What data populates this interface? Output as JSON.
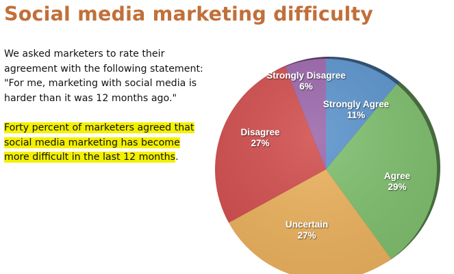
{
  "title": "Social media marketing difficulty",
  "intro": {
    "lines": [
      "We asked marketers to rate their",
      "agreement with the following statement:",
      "\"For me, marketing with social media is",
      "harder than it was 12 months ago.\""
    ]
  },
  "finding": {
    "highlighted_lines": [
      "Forty percent of marketers agreed that",
      "social media marketing has become",
      "more difficult in the last 12 months"
    ],
    "trailing": "."
  },
  "chart_data": {
    "type": "pie",
    "title": "",
    "start_angle": "12 o'clock, clockwise",
    "categories": [
      "Strongly Agree",
      "Agree",
      "Uncertain",
      "Disagree",
      "Strongly Disagree"
    ],
    "values": [
      11,
      29,
      27,
      27,
      6
    ],
    "unit": "%",
    "labels": [
      {
        "name": "Strongly Agree",
        "value": "11%"
      },
      {
        "name": "Agree",
        "value": "29%"
      },
      {
        "name": "Uncertain",
        "value": "27%"
      },
      {
        "name": "Disagree",
        "value": "27%"
      },
      {
        "name": "Strongly Disagree",
        "value": "6%"
      }
    ],
    "colors": [
      "#5b93cc",
      "#7fbf6e",
      "#ecb25e",
      "#d24e4e",
      "#9b67ab"
    ],
    "legend": "none (labels on slices)"
  }
}
